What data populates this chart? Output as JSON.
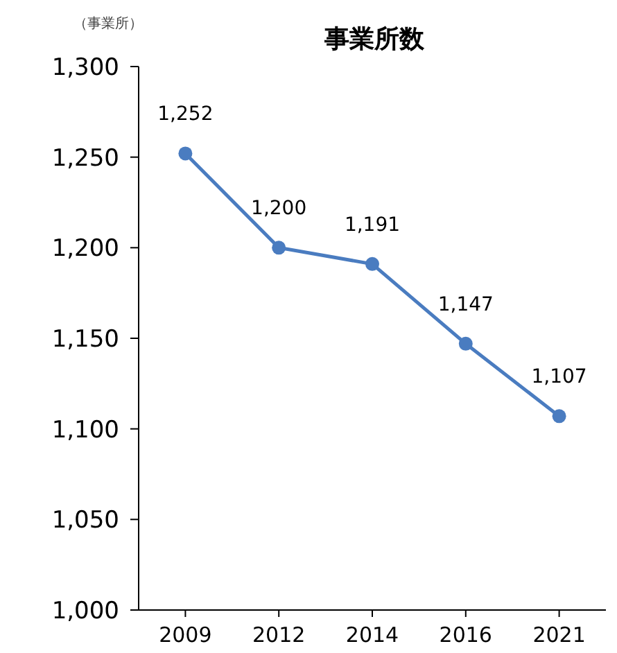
{
  "chart_data": {
    "type": "line",
    "title": "事業所数",
    "ylabel": "（事業所）",
    "categories": [
      "2009",
      "2012",
      "2014",
      "2016",
      "2021"
    ],
    "series": [
      {
        "color": "#4a7cc0",
        "values": [
          1252,
          1200,
          1191,
          1147,
          1107
        ]
      }
    ],
    "ylim": [
      1000,
      1300
    ],
    "yticks": [
      {
        "value": 1000,
        "label": "1,000"
      },
      {
        "value": 1050,
        "label": "1,050"
      },
      {
        "value": 1100,
        "label": "1,100"
      },
      {
        "value": 1150,
        "label": "1,150"
      },
      {
        "value": 1200,
        "label": "1,200"
      },
      {
        "value": 1250,
        "label": "1,250"
      },
      {
        "value": 1300,
        "label": "1,300"
      }
    ],
    "value_labels": [
      "1,252",
      "1,200",
      "1,191",
      "1,147",
      "1,107"
    ],
    "marker": "circle",
    "line_style": "solid"
  }
}
